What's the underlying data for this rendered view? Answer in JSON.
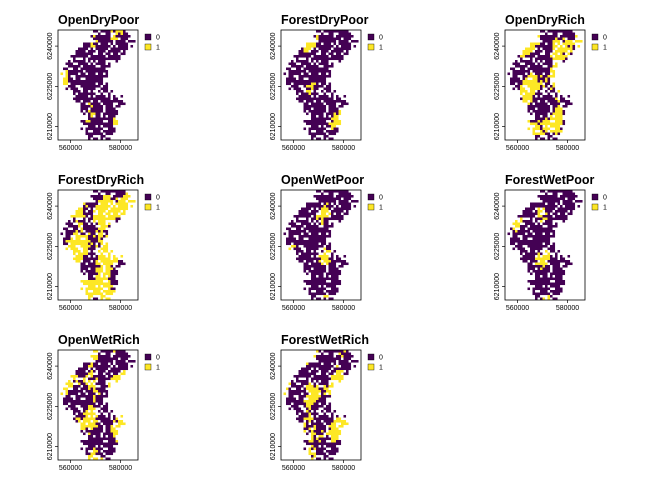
{
  "colors": {
    "class_0": "#440154",
    "class_1": "#FDE725"
  },
  "legend": {
    "entries": [
      {
        "label": "0",
        "color": "#440154"
      },
      {
        "label": "1",
        "color": "#FDE725"
      }
    ],
    "placement": "right"
  },
  "axes": {
    "x": {
      "range": [
        555000,
        587000
      ],
      "ticks": [
        "560000",
        "580000"
      ],
      "tick_values": [
        560000,
        580000
      ]
    },
    "y": {
      "range": [
        6205000,
        6246000
      ],
      "ticks": [
        "6210000",
        "6225000",
        "6240000"
      ],
      "tick_values": [
        6210000,
        6225000,
        6240000
      ]
    }
  },
  "panels": [
    {
      "title": "OpenDryPoor",
      "share_class_1": 0.04
    },
    {
      "title": "ForestDryPoor",
      "share_class_1": 0.04
    },
    {
      "title": "OpenDryRich",
      "share_class_1": 0.35
    },
    {
      "title": "ForestDryRich",
      "share_class_1": 0.55
    },
    {
      "title": "OpenWetPoor",
      "share_class_1": 0.04
    },
    {
      "title": "ForestWetPoor",
      "share_class_1": 0.04
    },
    {
      "title": "OpenWetRich",
      "share_class_1": 0.3
    },
    {
      "title": "ForestWetRich",
      "share_class_1": 0.3
    }
  ]
}
